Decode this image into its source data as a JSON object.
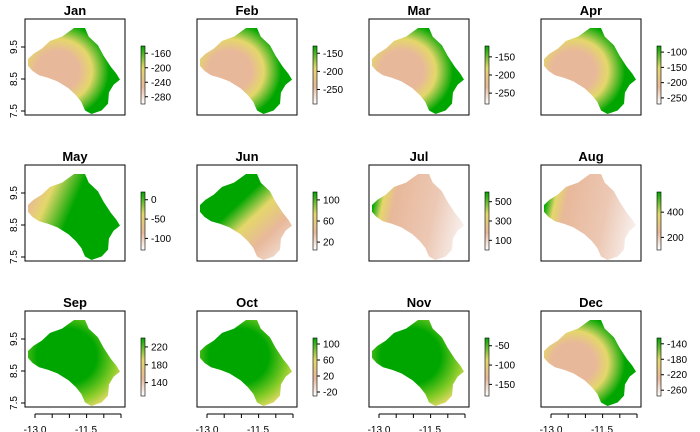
{
  "chart_data": {
    "type": "heatmap",
    "layout": "3x4 grid of maps",
    "colors": {
      "low": "#ffffff",
      "mid1": "#e8b89a",
      "mid2": "#e4d76a",
      "high": "#00a600"
    },
    "x_ticks": [
      "-13.0",
      "-11.5"
    ],
    "y_ticks": [
      "7.5",
      "8.5",
      "9.5"
    ],
    "panels": [
      {
        "title": "Jan",
        "range": [
          -300,
          -140
        ],
        "ticks": [
          -160,
          -200,
          -240,
          -280
        ],
        "tick_labels": [
          "-160",
          "-200",
          "-240",
          "-280"
        ],
        "pattern": "center"
      },
      {
        "title": "Feb",
        "range": [
          -290,
          -130
        ],
        "ticks": [
          -150,
          -200,
          -250
        ],
        "tick_labels": [
          "-150",
          "-200",
          "-250"
        ],
        "pattern": "center"
      },
      {
        "title": "Mar",
        "range": [
          -280,
          -120
        ],
        "ticks": [
          -150,
          -200,
          -250
        ],
        "tick_labels": [
          "-150",
          "-200",
          "-250"
        ],
        "pattern": "center"
      },
      {
        "title": "Apr",
        "range": [
          -270,
          -80
        ],
        "ticks": [
          -100,
          -150,
          -200,
          -250
        ],
        "tick_labels": [
          "-100",
          "-150",
          "-200",
          "-250"
        ],
        "pattern": "center"
      },
      {
        "title": "May",
        "range": [
          -130,
          20
        ],
        "ticks": [
          0,
          -50,
          -100
        ],
        "tick_labels": [
          "0",
          "-50",
          "-100"
        ],
        "pattern": "westcoast"
      },
      {
        "title": "Jun",
        "range": [
          5,
          115
        ],
        "ticks": [
          100,
          60,
          20
        ],
        "tick_labels": [
          "100",
          "60",
          "20"
        ],
        "pattern": "southeast"
      },
      {
        "title": "Jul",
        "range": [
          0,
          600
        ],
        "ticks": [
          500,
          300,
          100
        ],
        "tick_labels": [
          "500",
          "300",
          "100"
        ],
        "pattern": "wet"
      },
      {
        "title": "Aug",
        "range": [
          100,
          560
        ],
        "ticks": [
          400,
          200
        ],
        "tick_labels": [
          "400",
          "200"
        ],
        "pattern": "wet"
      },
      {
        "title": "Sep",
        "range": [
          110,
          240
        ],
        "ticks": [
          220,
          180,
          140
        ],
        "tick_labels": [
          "220",
          "180",
          "140"
        ],
        "pattern": "greenall"
      },
      {
        "title": "Oct",
        "range": [
          -30,
          115
        ],
        "ticks": [
          100,
          60,
          20,
          -20
        ],
        "tick_labels": [
          "100",
          "60",
          "20",
          "-20"
        ],
        "pattern": "greenall"
      },
      {
        "title": "Nov",
        "range": [
          -180,
          -30
        ],
        "ticks": [
          -50,
          -100,
          -150
        ],
        "tick_labels": [
          "-50",
          "-100",
          "-150"
        ],
        "pattern": "greenall"
      },
      {
        "title": "Dec",
        "range": [
          -275,
          -125
        ],
        "ticks": [
          -140,
          -180,
          -220,
          -260
        ],
        "tick_labels": [
          "-140",
          "-180",
          "-220",
          "-260"
        ],
        "pattern": "center"
      }
    ]
  }
}
